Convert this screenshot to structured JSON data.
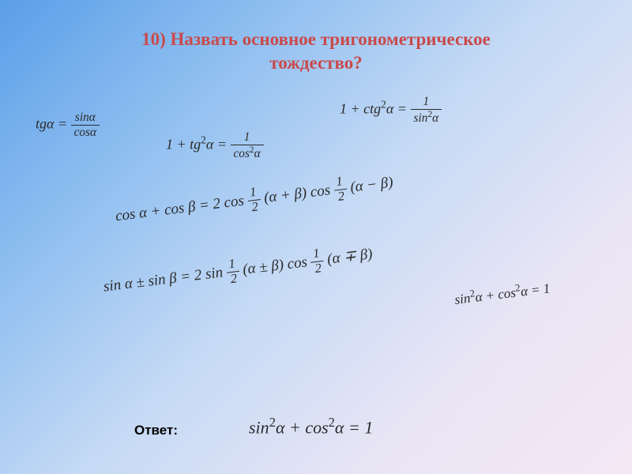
{
  "title_line1": "10) Назвать основное тригонометрическое",
  "title_line2": "тождество?",
  "formulas": {
    "f1_left": "tgα =",
    "f1_num": "sinα",
    "f1_den": "cosα",
    "f2_left": "1 + tg",
    "f2_sup": "2",
    "f2_mid": "α =",
    "f2_num": "1",
    "f2_den_a": "cos",
    "f2_den_sup": "2",
    "f2_den_b": "α",
    "f3_left": "1 + ctg",
    "f3_sup": "2",
    "f3_mid": "α =",
    "f3_num": "1",
    "f3_den_a": "sin",
    "f3_den_sup": "2",
    "f3_den_b": "α",
    "f4_a": "cos α + cos β = 2 cos",
    "f4_half1_num": "1",
    "f4_half1_den": "2",
    "f4_b": "(α + β) cos",
    "f4_half2_num": "1",
    "f4_half2_den": "2",
    "f4_c": "(α − β)",
    "f5_a": "sin α ± sin β = 2 sin",
    "f5_half1_num": "1",
    "f5_half1_den": "2",
    "f5_b": "(α ± β) cos",
    "f5_half2_num": "1",
    "f5_half2_den": "2",
    "f5_c": "(α ∓ β)",
    "f6_a": "sin",
    "f6_sup1": "2",
    "f6_b": "α + cos",
    "f6_sup2": "2",
    "f6_c": "α = 1"
  },
  "answer_label": "Ответ:",
  "answer": {
    "a": "sin",
    "sup1": "2",
    "b": "α + cos",
    "sup2": "2",
    "c": "α = 1"
  },
  "colors": {
    "title": "#C94A4A",
    "text": "#2a2a2a",
    "bg_start": "#5B9FE8",
    "bg_end": "#F5E8F5"
  }
}
